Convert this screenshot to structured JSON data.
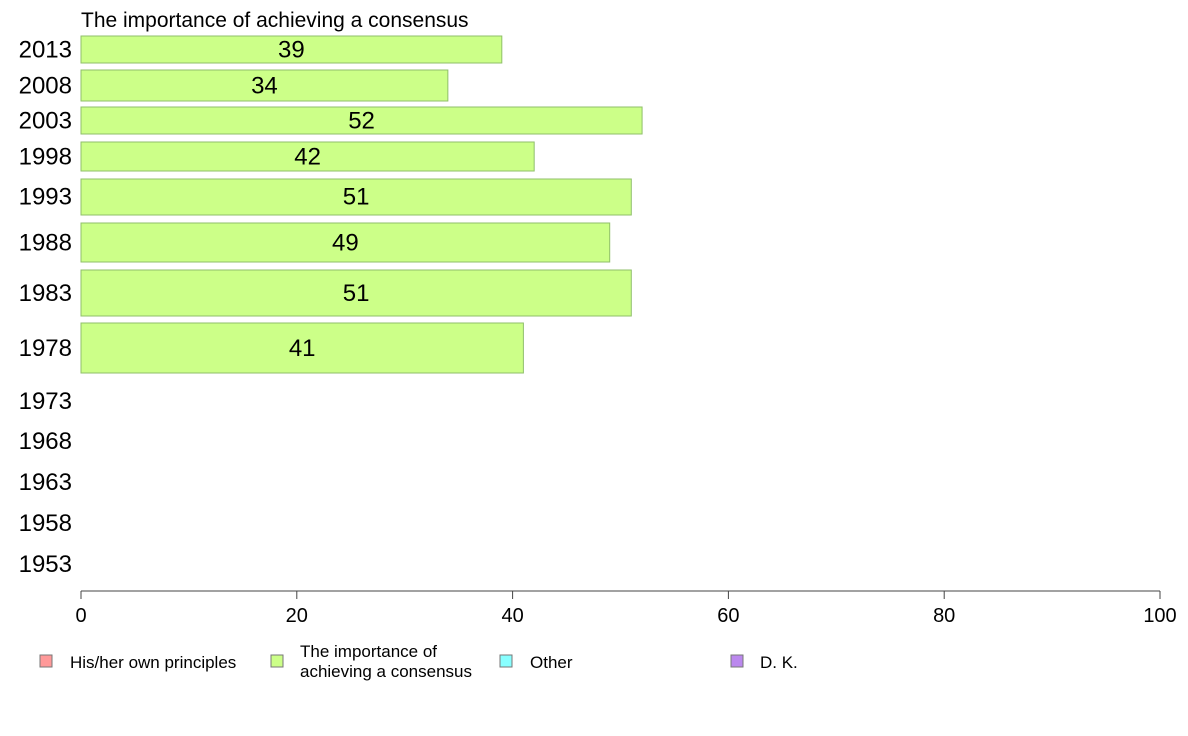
{
  "chart_data": {
    "type": "bar",
    "orientation": "horizontal",
    "title": "The importance of achieving a consensus",
    "categories": [
      "2013",
      "2008",
      "2003",
      "1998",
      "1993",
      "1988",
      "1983",
      "1978",
      "1973",
      "1968",
      "1963",
      "1958",
      "1953"
    ],
    "series": [
      {
        "name": "The importance of achieving a consensus",
        "color": "#ccff88",
        "values": [
          39,
          34,
          52,
          42,
          51,
          49,
          51,
          41,
          null,
          null,
          null,
          null,
          null
        ]
      }
    ],
    "xlim": [
      0,
      100
    ],
    "xticks": [
      0,
      20,
      40,
      60,
      80,
      100
    ],
    "grid": false,
    "legend": {
      "placement": "bottom-left",
      "items": [
        {
          "label_lines": [
            "His/her own principles"
          ],
          "color": "#ff9999"
        },
        {
          "label_lines": [
            "The importance of",
            "achieving a consensus"
          ],
          "color": "#ccff88"
        },
        {
          "label_lines": [
            "Other"
          ],
          "color": "#88ffff"
        },
        {
          "label_lines": [
            "D. K."
          ],
          "color": "#bb88ee"
        }
      ]
    }
  }
}
